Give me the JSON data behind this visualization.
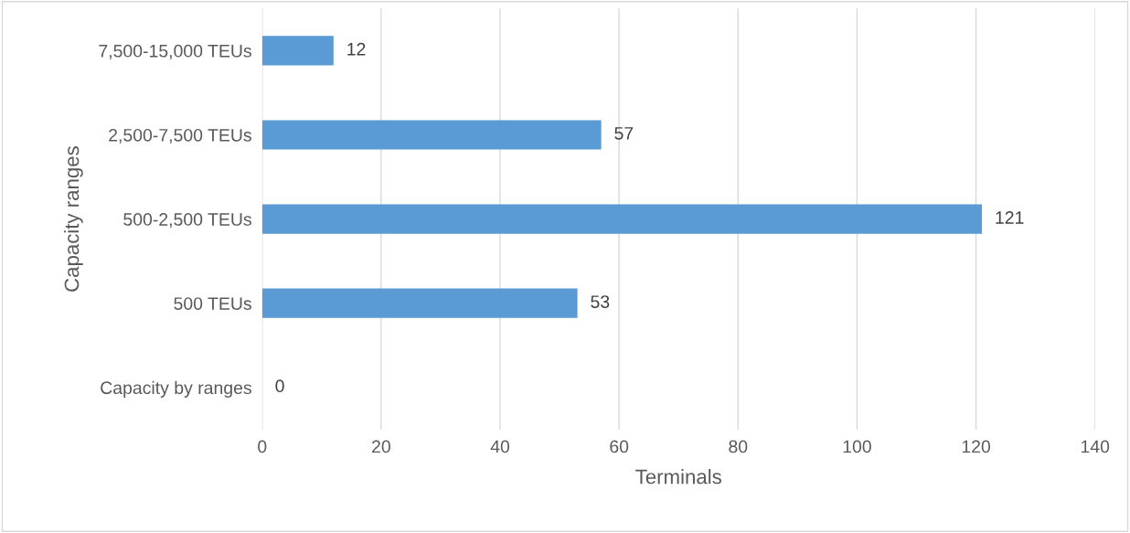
{
  "chart_data": {
    "type": "bar",
    "orientation": "horizontal",
    "categories": [
      "7,500-15,000 TEUs",
      "2,500-7,500 TEUs",
      "500-2,500 TEUs",
      "500 TEUs",
      "Capacity by ranges"
    ],
    "values": [
      12,
      57,
      121,
      53,
      0
    ],
    "color": "#5b9bd5",
    "xlabel": "Terminals",
    "ylabel": "Capacity ranges",
    "xlim": [
      0,
      140
    ],
    "xticks": [
      0,
      20,
      40,
      60,
      80,
      100,
      120,
      140
    ],
    "grid": "x",
    "data_labels": true
  }
}
